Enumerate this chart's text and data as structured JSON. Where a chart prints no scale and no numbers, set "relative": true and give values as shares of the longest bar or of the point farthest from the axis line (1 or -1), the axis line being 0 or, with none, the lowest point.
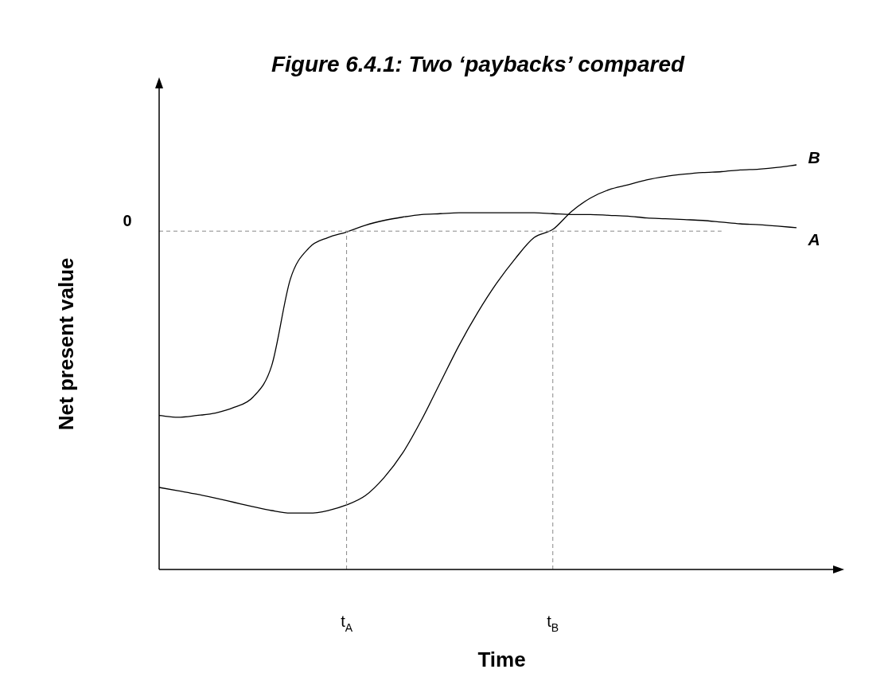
{
  "chart_data": {
    "type": "line",
    "title": "Figure 6.4.1: Two ‘paybacks’ compared",
    "xlabel": "Time",
    "ylabel": "Net present value",
    "relative": true,
    "grid": false,
    "legend": false,
    "marker": "none",
    "line_style": "solid",
    "categories": [
      null,
      null,
      null,
      null,
      null,
      null,
      null,
      null,
      null,
      null,
      "t$_{A}$",
      null,
      null,
      null,
      null,
      null,
      null,
      null,
      null,
      null,
      null,
      "t$_{B}$",
      null,
      null,
      null,
      null,
      null,
      null,
      null,
      null,
      null,
      null,
      null,
      null,
      null
    ],
    "series": [
      {
        "name": "A",
        "color": "#000000",
        "values": [
          -0.654,
          -0.66,
          -0.654,
          -0.645,
          -0.625,
          -0.589,
          -0.478,
          -0.17,
          -0.059,
          -0.023,
          -0.003,
          0.021,
          0.038,
          0.05,
          0.059,
          0.062,
          0.065,
          0.065,
          0.065,
          0.065,
          0.065,
          0.062,
          0.059,
          0.059,
          0.056,
          0.053,
          0.047,
          0.044,
          0.041,
          0.038,
          0.032,
          0.026,
          0.023,
          0.018,
          0.012
        ]
      },
      {
        "name": "B",
        "color": "#000000",
        "values": [
          -0.909,
          -0.921,
          -0.933,
          -0.947,
          -0.962,
          -0.977,
          -0.991,
          -1,
          -1,
          -0.991,
          -0.971,
          -0.938,
          -0.874,
          -0.786,
          -0.669,
          -0.537,
          -0.405,
          -0.288,
          -0.185,
          -0.097,
          -0.023,
          0.006,
          0.07,
          0.117,
          0.147,
          0.164,
          0.182,
          0.194,
          0.202,
          0.208,
          0.211,
          0.217,
          0.22,
          0.226,
          0.235
        ]
      }
    ],
    "ref_lines": [
      {
        "axis": "y",
        "value": 0,
        "label": "0",
        "line_style": "dashed"
      },
      {
        "axis": "x",
        "value": "t$_{A}$",
        "line_style": "dashed"
      },
      {
        "axis": "x",
        "value": "t$_{B}$",
        "line_style": "dashed"
      }
    ]
  }
}
